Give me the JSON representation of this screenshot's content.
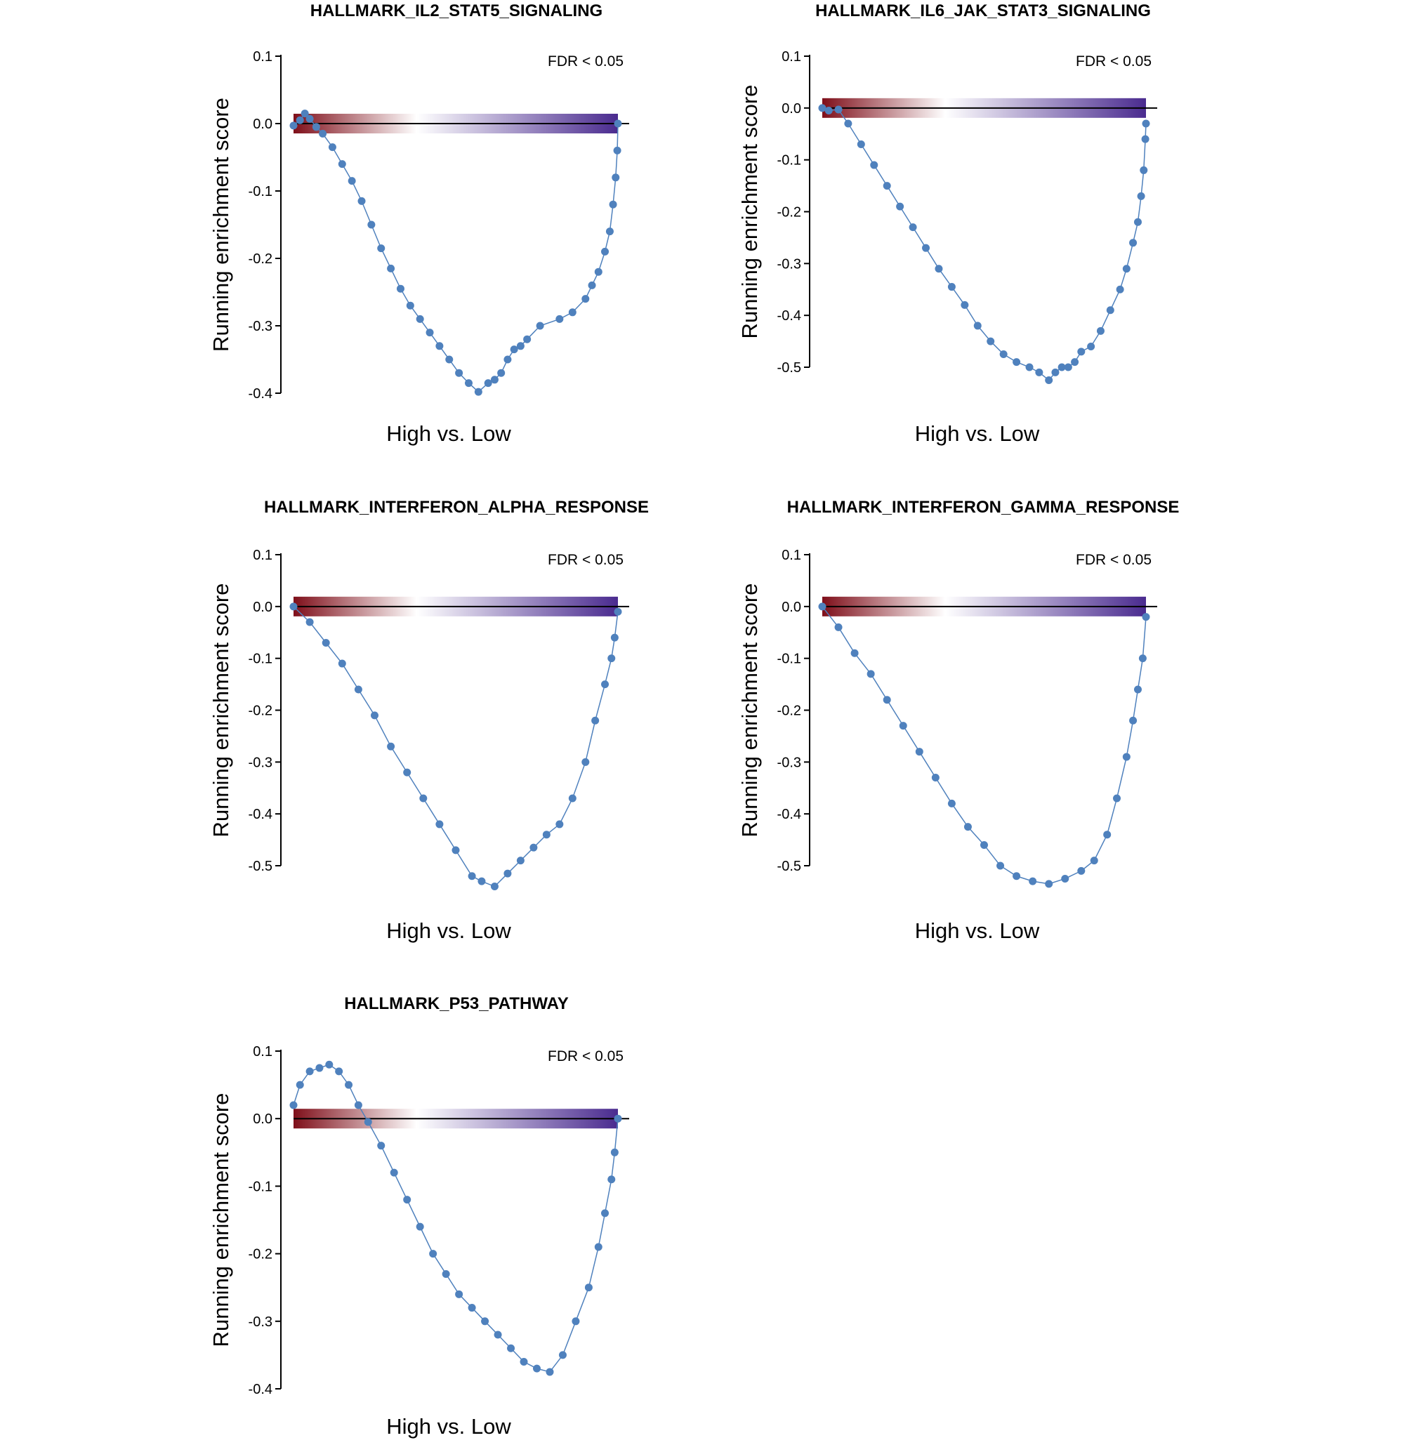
{
  "colors": {
    "points": "#4f81bd",
    "line": "#4f81bd",
    "gradient_start": "#7f0f1a",
    "gradient_mid": "#ffffff",
    "gradient_end": "#4a2b8f",
    "axis": "#000000"
  },
  "chart_data": [
    {
      "type": "line",
      "title": "HALLMARK_IL2_STAT5_SIGNALING",
      "xlabel": "High vs. Low",
      "ylabel": "Running enrichment score",
      "annotation": "FDR < 0.05",
      "ylim": [
        -0.4,
        0.1
      ],
      "yticks": [
        {
          "value": 0.1,
          "label": "0.1"
        },
        {
          "value": 0.0,
          "label": "0.0"
        },
        {
          "value": -0.1,
          "label": "-0.1"
        },
        {
          "value": -0.2,
          "label": "-0.2"
        },
        {
          "value": -0.3,
          "label": "-0.3"
        },
        {
          "value": -0.4,
          "label": "-0.4"
        }
      ],
      "grid": false,
      "x_range": [
        0,
        1
      ],
      "points": [
        [
          0.0,
          -0.003
        ],
        [
          0.02,
          0.005
        ],
        [
          0.035,
          0.015
        ],
        [
          0.05,
          0.007
        ],
        [
          0.07,
          -0.005
        ],
        [
          0.09,
          -0.015
        ],
        [
          0.12,
          -0.035
        ],
        [
          0.15,
          -0.06
        ],
        [
          0.18,
          -0.085
        ],
        [
          0.21,
          -0.115
        ],
        [
          0.24,
          -0.15
        ],
        [
          0.27,
          -0.185
        ],
        [
          0.3,
          -0.215
        ],
        [
          0.33,
          -0.245
        ],
        [
          0.36,
          -0.27
        ],
        [
          0.39,
          -0.29
        ],
        [
          0.42,
          -0.31
        ],
        [
          0.45,
          -0.33
        ],
        [
          0.48,
          -0.35
        ],
        [
          0.51,
          -0.37
        ],
        [
          0.54,
          -0.385
        ],
        [
          0.57,
          -0.398
        ],
        [
          0.6,
          -0.385
        ],
        [
          0.62,
          -0.38
        ],
        [
          0.64,
          -0.37
        ],
        [
          0.66,
          -0.35
        ],
        [
          0.68,
          -0.335
        ],
        [
          0.7,
          -0.33
        ],
        [
          0.72,
          -0.32
        ],
        [
          0.76,
          -0.3
        ],
        [
          0.82,
          -0.29
        ],
        [
          0.86,
          -0.28
        ],
        [
          0.9,
          -0.26
        ],
        [
          0.92,
          -0.24
        ],
        [
          0.94,
          -0.22
        ],
        [
          0.96,
          -0.19
        ],
        [
          0.975,
          -0.16
        ],
        [
          0.985,
          -0.12
        ],
        [
          0.993,
          -0.08
        ],
        [
          0.998,
          -0.04
        ],
        [
          1.0,
          0.0
        ]
      ]
    },
    {
      "type": "line",
      "title": "HALLMARK_IL6_JAK_STAT3_SIGNALING",
      "xlabel": "High vs. Low",
      "ylabel": "Running enrichment score",
      "annotation": "FDR < 0.05",
      "ylim": [
        -0.5,
        0.1
      ],
      "yticks": [
        {
          "value": 0.1,
          "label": "0.1"
        },
        {
          "value": 0.0,
          "label": "0.0"
        },
        {
          "value": -0.1,
          "label": "-0.1"
        },
        {
          "value": -0.2,
          "label": "-0.2"
        },
        {
          "value": -0.3,
          "label": "-0.3"
        },
        {
          "value": -0.4,
          "label": "-0.4"
        },
        {
          "value": -0.5,
          "label": "-0.5"
        }
      ],
      "grid": false,
      "x_range": [
        0,
        1
      ],
      "points": [
        [
          0.0,
          0.0
        ],
        [
          0.02,
          -0.005
        ],
        [
          0.05,
          -0.003
        ],
        [
          0.08,
          -0.03
        ],
        [
          0.12,
          -0.07
        ],
        [
          0.16,
          -0.11
        ],
        [
          0.2,
          -0.15
        ],
        [
          0.24,
          -0.19
        ],
        [
          0.28,
          -0.23
        ],
        [
          0.32,
          -0.27
        ],
        [
          0.36,
          -0.31
        ],
        [
          0.4,
          -0.345
        ],
        [
          0.44,
          -0.38
        ],
        [
          0.48,
          -0.42
        ],
        [
          0.52,
          -0.45
        ],
        [
          0.56,
          -0.475
        ],
        [
          0.6,
          -0.49
        ],
        [
          0.64,
          -0.5
        ],
        [
          0.67,
          -0.51
        ],
        [
          0.7,
          -0.525
        ],
        [
          0.72,
          -0.51
        ],
        [
          0.74,
          -0.5
        ],
        [
          0.76,
          -0.5
        ],
        [
          0.78,
          -0.49
        ],
        [
          0.8,
          -0.47
        ],
        [
          0.83,
          -0.46
        ],
        [
          0.86,
          -0.43
        ],
        [
          0.89,
          -0.39
        ],
        [
          0.92,
          -0.35
        ],
        [
          0.94,
          -0.31
        ],
        [
          0.96,
          -0.26
        ],
        [
          0.975,
          -0.22
        ],
        [
          0.985,
          -0.17
        ],
        [
          0.993,
          -0.12
        ],
        [
          0.998,
          -0.06
        ],
        [
          1.0,
          -0.03
        ]
      ]
    },
    {
      "type": "line",
      "title": "HALLMARK_INTERFERON_ALPHA_RESPONSE",
      "xlabel": "High vs. Low",
      "ylabel": "Running enrichment score",
      "annotation": "FDR < 0.05",
      "ylim": [
        -0.5,
        0.1
      ],
      "yticks": [
        {
          "value": 0.1,
          "label": "0.1"
        },
        {
          "value": 0.0,
          "label": "0.0"
        },
        {
          "value": -0.1,
          "label": "-0.1"
        },
        {
          "value": -0.2,
          "label": "-0.2"
        },
        {
          "value": -0.3,
          "label": "-0.3"
        },
        {
          "value": -0.4,
          "label": "-0.4"
        },
        {
          "value": -0.5,
          "label": "-0.5"
        }
      ],
      "grid": false,
      "x_range": [
        0,
        1
      ],
      "points": [
        [
          0.0,
          0.0
        ],
        [
          0.05,
          -0.03
        ],
        [
          0.1,
          -0.07
        ],
        [
          0.15,
          -0.11
        ],
        [
          0.2,
          -0.16
        ],
        [
          0.25,
          -0.21
        ],
        [
          0.3,
          -0.27
        ],
        [
          0.35,
          -0.32
        ],
        [
          0.4,
          -0.37
        ],
        [
          0.45,
          -0.42
        ],
        [
          0.5,
          -0.47
        ],
        [
          0.55,
          -0.52
        ],
        [
          0.58,
          -0.53
        ],
        [
          0.62,
          -0.54
        ],
        [
          0.66,
          -0.515
        ],
        [
          0.7,
          -0.49
        ],
        [
          0.74,
          -0.465
        ],
        [
          0.78,
          -0.44
        ],
        [
          0.82,
          -0.42
        ],
        [
          0.86,
          -0.37
        ],
        [
          0.9,
          -0.3
        ],
        [
          0.93,
          -0.22
        ],
        [
          0.96,
          -0.15
        ],
        [
          0.98,
          -0.1
        ],
        [
          0.99,
          -0.06
        ],
        [
          1.0,
          -0.01
        ]
      ]
    },
    {
      "type": "line",
      "title": "HALLMARK_INTERFERON_GAMMA_RESPONSE",
      "xlabel": "High vs. Low",
      "ylabel": "Running enrichment score",
      "annotation": "FDR < 0.05",
      "ylim": [
        -0.5,
        0.1
      ],
      "yticks": [
        {
          "value": 0.1,
          "label": "0.1"
        },
        {
          "value": 0.0,
          "label": "0.0"
        },
        {
          "value": -0.1,
          "label": "-0.1"
        },
        {
          "value": -0.2,
          "label": "-0.2"
        },
        {
          "value": -0.3,
          "label": "-0.3"
        },
        {
          "value": -0.4,
          "label": "-0.4"
        },
        {
          "value": -0.5,
          "label": "-0.5"
        }
      ],
      "grid": false,
      "x_range": [
        0,
        1
      ],
      "points": [
        [
          0.0,
          0.0
        ],
        [
          0.05,
          -0.04
        ],
        [
          0.1,
          -0.09
        ],
        [
          0.15,
          -0.13
        ],
        [
          0.2,
          -0.18
        ],
        [
          0.25,
          -0.23
        ],
        [
          0.3,
          -0.28
        ],
        [
          0.35,
          -0.33
        ],
        [
          0.4,
          -0.38
        ],
        [
          0.45,
          -0.425
        ],
        [
          0.5,
          -0.46
        ],
        [
          0.55,
          -0.5
        ],
        [
          0.6,
          -0.52
        ],
        [
          0.65,
          -0.53
        ],
        [
          0.7,
          -0.535
        ],
        [
          0.75,
          -0.525
        ],
        [
          0.8,
          -0.51
        ],
        [
          0.84,
          -0.49
        ],
        [
          0.88,
          -0.44
        ],
        [
          0.91,
          -0.37
        ],
        [
          0.94,
          -0.29
        ],
        [
          0.96,
          -0.22
        ],
        [
          0.975,
          -0.16
        ],
        [
          0.99,
          -0.1
        ],
        [
          1.0,
          -0.02
        ]
      ]
    },
    {
      "type": "line",
      "title": "HALLMARK_P53_PATHWAY",
      "xlabel": "High vs. Low",
      "ylabel": "Running enrichment score",
      "annotation": "FDR < 0.05",
      "ylim": [
        -0.4,
        0.1
      ],
      "yticks": [
        {
          "value": 0.1,
          "label": "0.1"
        },
        {
          "value": 0.0,
          "label": "0.0"
        },
        {
          "value": -0.1,
          "label": "-0.1"
        },
        {
          "value": -0.2,
          "label": "-0.2"
        },
        {
          "value": -0.3,
          "label": "-0.3"
        },
        {
          "value": -0.4,
          "label": "-0.4"
        }
      ],
      "grid": false,
      "x_range": [
        0,
        1
      ],
      "points": [
        [
          0.0,
          0.02
        ],
        [
          0.02,
          0.05
        ],
        [
          0.05,
          0.07
        ],
        [
          0.08,
          0.075
        ],
        [
          0.11,
          0.08
        ],
        [
          0.14,
          0.07
        ],
        [
          0.17,
          0.05
        ],
        [
          0.2,
          0.02
        ],
        [
          0.23,
          -0.005
        ],
        [
          0.27,
          -0.04
        ],
        [
          0.31,
          -0.08
        ],
        [
          0.35,
          -0.12
        ],
        [
          0.39,
          -0.16
        ],
        [
          0.43,
          -0.2
        ],
        [
          0.47,
          -0.23
        ],
        [
          0.51,
          -0.26
        ],
        [
          0.55,
          -0.28
        ],
        [
          0.59,
          -0.3
        ],
        [
          0.63,
          -0.32
        ],
        [
          0.67,
          -0.34
        ],
        [
          0.71,
          -0.36
        ],
        [
          0.75,
          -0.37
        ],
        [
          0.79,
          -0.375
        ],
        [
          0.83,
          -0.35
        ],
        [
          0.87,
          -0.3
        ],
        [
          0.91,
          -0.25
        ],
        [
          0.94,
          -0.19
        ],
        [
          0.96,
          -0.14
        ],
        [
          0.98,
          -0.09
        ],
        [
          0.99,
          -0.05
        ],
        [
          1.0,
          0.0
        ]
      ]
    }
  ]
}
